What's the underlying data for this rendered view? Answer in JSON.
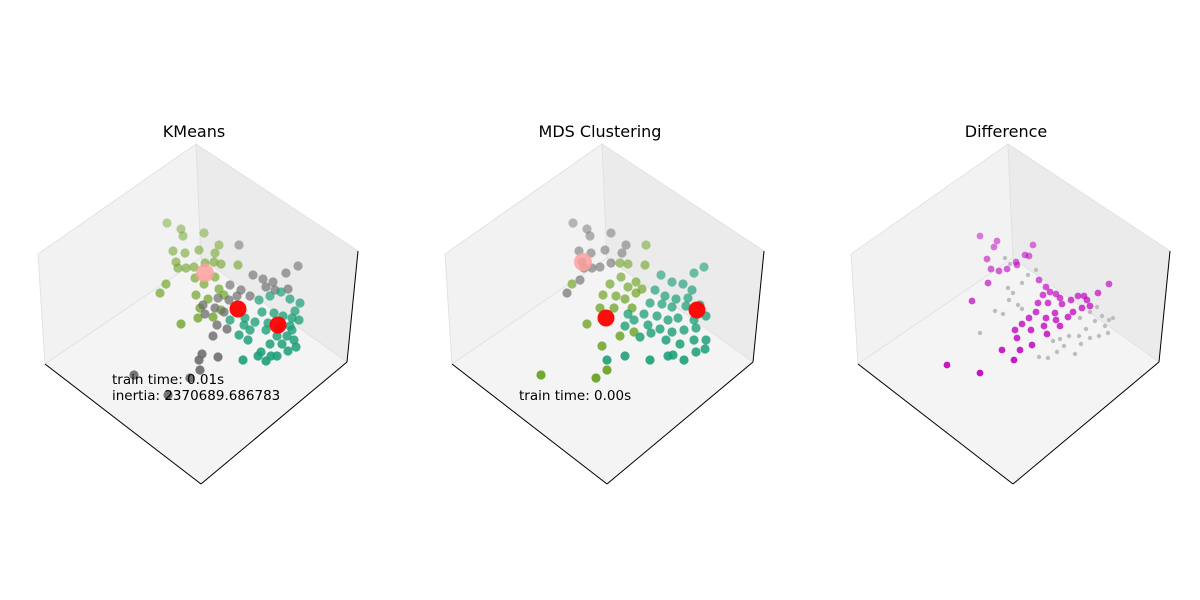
{
  "figure": {
    "background": "#ffffff"
  },
  "colors": {
    "pane_left": "#f2f2f2",
    "pane_right": "#ebebeb",
    "pane_floor": "#f4f4f4",
    "pane_edge": "#e2e2e2",
    "axis_line": "#000000",
    "cluster_olive": "#6aa121",
    "cluster_gray": "#6b6b6b",
    "cluster_teal": "#1a9e77",
    "center_red": "#ff0000",
    "center_pink": "#ffa0a0",
    "diff_magenta": "#bf00bf",
    "diff_gray": "#bdbdbd"
  },
  "chart_data": [
    {
      "type": "scatter",
      "projection": "3d",
      "title": "KMeans",
      "annotations": [
        "train time: 0.01s",
        "inertia: 2370689.686783"
      ],
      "grid": false,
      "axis_ticks": "none",
      "cluster_centers": [
        {
          "x": 238,
          "y": 309,
          "color": "red"
        },
        {
          "x": 278,
          "y": 325,
          "color": "red"
        },
        {
          "x": 205,
          "y": 273,
          "color": "pink"
        }
      ],
      "series": [
        {
          "color": "olive",
          "points": [
            [
              167,
              223
            ],
            [
              181,
              229
            ],
            [
              183,
              236
            ],
            [
              204,
              233
            ],
            [
              173,
              251
            ],
            [
              185,
              253
            ],
            [
              199,
              250
            ],
            [
              219,
              245
            ],
            [
              215,
              253
            ],
            [
              176,
              262
            ],
            [
              178,
              268
            ],
            [
              186,
              268
            ],
            [
              194,
              267
            ],
            [
              205,
              263
            ],
            [
              214,
              262
            ],
            [
              221,
              264
            ],
            [
              238,
              265
            ],
            [
              166,
              284
            ],
            [
              160,
              293
            ],
            [
              195,
              278
            ],
            [
              204,
              284
            ],
            [
              215,
              277
            ],
            [
              219,
              289
            ],
            [
              224,
              295
            ],
            [
              196,
              295
            ],
            [
              208,
              299
            ],
            [
              200,
              308
            ],
            [
              181,
              324
            ],
            [
              198,
              318
            ],
            [
              213,
              317
            ],
            [
              221,
              310
            ]
          ]
        },
        {
          "color": "gray",
          "points": [
            [
              239,
              245
            ],
            [
              253,
              275
            ],
            [
              263,
              279
            ],
            [
              286,
              273
            ],
            [
              298,
              266
            ],
            [
              230,
              285
            ],
            [
              241,
              290
            ],
            [
              266,
              287
            ],
            [
              273,
              282
            ],
            [
              275,
              290
            ],
            [
              288,
              289
            ],
            [
              218,
              298
            ],
            [
              229,
              300
            ],
            [
              237,
              296
            ],
            [
              250,
              296
            ],
            [
              203,
              305
            ],
            [
              215,
              308
            ],
            [
              224,
              312
            ],
            [
              205,
              314
            ],
            [
              217,
              325
            ],
            [
              213,
              336
            ],
            [
              227,
              329
            ],
            [
              202,
              354
            ],
            [
              218,
              357
            ],
            [
              199,
              360
            ],
            [
              200,
              370
            ],
            [
              134,
              375
            ],
            [
              190,
              378
            ],
            [
              168,
              395
            ]
          ]
        },
        {
          "color": "teal",
          "points": [
            [
              259,
              300
            ],
            [
              270,
              296
            ],
            [
              281,
              292
            ],
            [
              290,
              299
            ],
            [
              300,
              303
            ],
            [
              295,
              311
            ],
            [
              262,
              312
            ],
            [
              274,
              313
            ],
            [
              283,
              316
            ],
            [
              292,
              318
            ],
            [
              299,
              320
            ],
            [
              255,
              322
            ],
            [
              268,
              323
            ],
            [
              279,
              327
            ],
            [
              290,
              326
            ],
            [
              244,
              325
            ],
            [
              250,
              330
            ],
            [
              266,
              330
            ],
            [
              277,
              336
            ],
            [
              287,
              336
            ],
            [
              292,
              330
            ],
            [
              239,
              335
            ],
            [
              248,
              340
            ],
            [
              270,
              344
            ],
            [
              282,
              344
            ],
            [
              294,
              340
            ],
            [
              288,
              351
            ],
            [
              296,
              347
            ],
            [
              261,
              352
            ],
            [
              271,
              356
            ],
            [
              266,
              361
            ],
            [
              277,
              356
            ],
            [
              243,
              360
            ],
            [
              258,
              356
            ],
            [
              245,
              318
            ],
            [
              230,
              320
            ]
          ]
        }
      ]
    },
    {
      "type": "scatter",
      "projection": "3d",
      "title": "MDS Clustering",
      "annotations": [
        "train time: 0.00s"
      ],
      "grid": false,
      "axis_ticks": "none",
      "cluster_centers": [
        {
          "x": 606,
          "y": 318,
          "color": "red"
        },
        {
          "x": 583,
          "y": 262,
          "color": "pink"
        },
        {
          "x": 697,
          "y": 310,
          "color": "red"
        }
      ],
      "series": [
        {
          "color": "gray",
          "points": [
            [
              573,
              223
            ],
            [
              587,
              229
            ],
            [
              590,
              236
            ],
            [
              611,
              233
            ],
            [
              579,
              251
            ],
            [
              591,
              253
            ],
            [
              605,
              250
            ],
            [
              626,
              245
            ],
            [
              622,
              253
            ],
            [
              582,
              262
            ],
            [
              584,
              268
            ],
            [
              592,
              268
            ],
            [
              600,
              267
            ],
            [
              611,
              263
            ],
            [
              580,
              280
            ],
            [
              567,
              293
            ]
          ]
        },
        {
          "color": "olive",
          "points": [
            [
              646,
              245
            ],
            [
              628,
              264
            ],
            [
              645,
              265
            ],
            [
              620,
              263
            ],
            [
              621,
              277
            ],
            [
              636,
              282
            ],
            [
              628,
              287
            ],
            [
              636,
              293
            ],
            [
              642,
              289
            ],
            [
              610,
              284
            ],
            [
              603,
              295
            ],
            [
              616,
              296
            ],
            [
              625,
              299
            ],
            [
              600,
              308
            ],
            [
              614,
              308
            ],
            [
              632,
              308
            ],
            [
              587,
              324
            ],
            [
              620,
              336
            ],
            [
              634,
              332
            ],
            [
              602,
              346
            ],
            [
              607,
              370
            ],
            [
              596,
              378
            ],
            [
              541,
              375
            ],
            [
              572,
              284
            ]
          ]
        },
        {
          "color": "teal",
          "points": [
            [
              661,
              275
            ],
            [
              672,
              282
            ],
            [
              683,
              284
            ],
            [
              692,
              290
            ],
            [
              704,
              267
            ],
            [
              694,
              273
            ],
            [
              655,
              290
            ],
            [
              665,
              296
            ],
            [
              676,
              299
            ],
            [
              688,
              298
            ],
            [
              650,
              303
            ],
            [
              662,
              304
            ],
            [
              672,
              307
            ],
            [
              686,
              306
            ],
            [
              700,
              305
            ],
            [
              644,
              314
            ],
            [
              657,
              316
            ],
            [
              668,
              320
            ],
            [
              678,
              318
            ],
            [
              694,
              320
            ],
            [
              706,
              316
            ],
            [
              648,
              325
            ],
            [
              660,
              329
            ],
            [
              672,
              332
            ],
            [
              684,
              330
            ],
            [
              696,
              328
            ],
            [
              640,
              337
            ],
            [
              651,
              333
            ],
            [
              666,
              340
            ],
            [
              680,
              344
            ],
            [
              694,
              340
            ],
            [
              706,
              340
            ],
            [
              673,
              355
            ],
            [
              684,
              360
            ],
            [
              696,
              352
            ],
            [
              705,
              349
            ],
            [
              650,
              360
            ],
            [
              668,
              356
            ],
            [
              625,
              356
            ],
            [
              607,
              360
            ],
            [
              625,
              326
            ],
            [
              634,
              320
            ],
            [
              628,
              314
            ]
          ]
        }
      ]
    },
    {
      "type": "scatter",
      "projection": "3d",
      "title": "Difference",
      "annotations": [],
      "grid": false,
      "axis_ticks": "none",
      "series": [
        {
          "color": "magenta",
          "points": [
            [
              980,
              236
            ],
            [
              997,
              241
            ],
            [
              994,
              247
            ],
            [
              1033,
              245
            ],
            [
              1025,
              255
            ],
            [
              1029,
              256
            ],
            [
              987,
              259
            ],
            [
              1016,
              262
            ],
            [
              1017,
              265
            ],
            [
              991,
              269
            ],
            [
              999,
              271
            ],
            [
              1007,
              269
            ],
            [
              988,
              283
            ],
            [
              972,
              301
            ],
            [
              1039,
              280
            ],
            [
              1046,
              287
            ],
            [
              1043,
              295
            ],
            [
              1050,
              292
            ],
            [
              1056,
              294
            ],
            [
              1060,
              298
            ],
            [
              1038,
              303
            ],
            [
              1048,
              303
            ],
            [
              1062,
              304
            ],
            [
              1071,
              300
            ],
            [
              1078,
              296
            ],
            [
              1084,
              296
            ],
            [
              1087,
              300
            ],
            [
              1098,
              293
            ],
            [
              1109,
              284
            ],
            [
              1090,
              306
            ],
            [
              1082,
              308
            ],
            [
              1073,
              312
            ],
            [
              1068,
              317
            ],
            [
              1055,
              313
            ],
            [
              1046,
              318
            ],
            [
              1036,
              312
            ],
            [
              1029,
              318
            ],
            [
              1022,
              324
            ],
            [
              1015,
              330
            ],
            [
              1031,
              330
            ],
            [
              1044,
              326
            ],
            [
              1056,
              320
            ],
            [
              1060,
              326
            ],
            [
              1017,
              338
            ],
            [
              1047,
              334
            ],
            [
              1020,
              350
            ],
            [
              1002,
              350
            ],
            [
              1032,
              345
            ],
            [
              1014,
              360
            ],
            [
              947,
              365
            ],
            [
              980,
              373
            ]
          ]
        },
        {
          "color": "lightgray",
          "points": [
            [
              1005,
              258
            ],
            [
              1010,
              264
            ],
            [
              1036,
              270
            ],
            [
              1028,
              275
            ],
            [
              1022,
              283
            ],
            [
              1008,
              288
            ],
            [
              1013,
              293
            ],
            [
              1009,
              300
            ],
            [
              995,
              311
            ],
            [
              1003,
              314
            ],
            [
              1022,
              309
            ],
            [
              1080,
              318
            ],
            [
              1090,
              312
            ],
            [
              1097,
              307
            ],
            [
              1102,
              316
            ],
            [
              1109,
              320
            ],
            [
              1113,
              318
            ],
            [
              1095,
              321
            ],
            [
              1105,
              326
            ],
            [
              1086,
              329
            ],
            [
              1079,
              336
            ],
            [
              1090,
              338
            ],
            [
              1099,
              336
            ],
            [
              1108,
              333
            ],
            [
              1069,
              336
            ],
            [
              1060,
              339
            ],
            [
              1053,
              341
            ],
            [
              1064,
              346
            ],
            [
              1081,
              344
            ],
            [
              1075,
              354
            ],
            [
              1057,
              352
            ],
            [
              1048,
              358
            ],
            [
              1039,
              357
            ],
            [
              980,
              333
            ],
            [
              1018,
              305
            ]
          ]
        }
      ]
    }
  ]
}
